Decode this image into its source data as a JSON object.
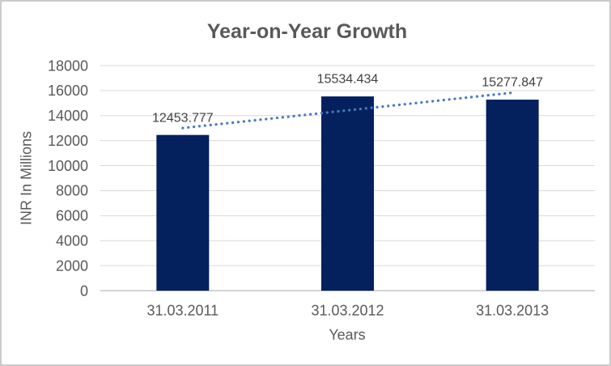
{
  "chart_data": {
    "type": "bar",
    "title": "Year-on-Year Growth",
    "xlabel": "Years",
    "ylabel": "INR In Millions",
    "categories": [
      "31.03.2011",
      "31.03.2012",
      "31.03.2013"
    ],
    "values": [
      12453.777,
      15534.434,
      15277.847
    ],
    "data_labels": [
      "12453.777",
      "15534.434",
      "15277.847"
    ],
    "ylim": [
      0,
      18000
    ],
    "yticks": [
      0,
      2000,
      4000,
      6000,
      8000,
      10000,
      12000,
      14000,
      16000,
      18000
    ],
    "grid": true,
    "legend": false,
    "trendline": {
      "type": "linear",
      "style": "dotted"
    },
    "colors": {
      "bar": "#04215E",
      "trendline": "#4779C5",
      "gridline": "#D9D9D9",
      "axis_line": "#C6C6C6",
      "tick_text": "#595959",
      "data_label_text": "#404040",
      "title_text": "#595959",
      "border": "#CBCBCB",
      "background": "#FFFFFF"
    }
  }
}
